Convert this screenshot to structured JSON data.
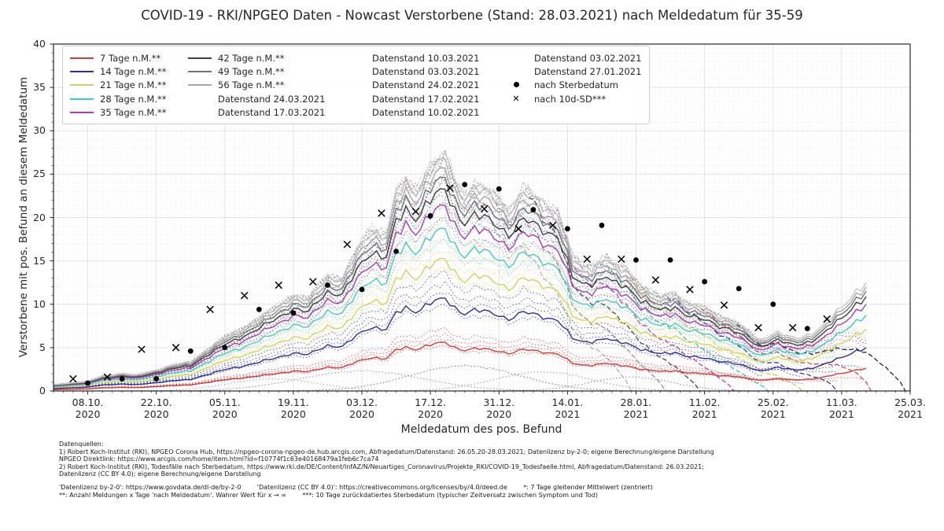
{
  "title": "COVID-19 - RKI/NPGEO Daten - Nowcast Verstorbene (Stand: 28.03.2021) nach Meldedatum für 35-59",
  "axes": {
    "x_label": "Meldedatum des pos. Befund",
    "y_label": "Verstorbene mit pos. Befund an diesem Meldedatum",
    "y_ticks": [
      0,
      5,
      10,
      15,
      20,
      25,
      30,
      35,
      40
    ],
    "x_ticks": [
      {
        "line1": "08.10.",
        "line2": "2020"
      },
      {
        "line1": "22.10.",
        "line2": "2020"
      },
      {
        "line1": "05.11.",
        "line2": "2020"
      },
      {
        "line1": "19.11.",
        "line2": "2020"
      },
      {
        "line1": "03.12.",
        "line2": "2020"
      },
      {
        "line1": "17.12.",
        "line2": "2020"
      },
      {
        "line1": "31.12.",
        "line2": "2020"
      },
      {
        "line1": "14.01.",
        "line2": "2021"
      },
      {
        "line1": "28.01.",
        "line2": "2021"
      },
      {
        "line1": "11.02.",
        "line2": "2021"
      },
      {
        "line1": "25.02.",
        "line2": "2021"
      },
      {
        "line1": "11.03.",
        "line2": "2021"
      },
      {
        "line1": "25.03.",
        "line2": "2021"
      }
    ]
  },
  "legend": {
    "items": [
      {
        "label": "7 Tage n.M.**",
        "color": "#cc3d3d",
        "type": "solid"
      },
      {
        "label": "14 Tage n.M.**",
        "color": "#2e2e96",
        "type": "solid"
      },
      {
        "label": "21 Tage n.M.**",
        "color": "#d2d25a",
        "type": "solid"
      },
      {
        "label": "28 Tage n.M.**",
        "color": "#3fc8c8",
        "type": "solid"
      },
      {
        "label": "35 Tage n.M.**",
        "color": "#b03ab0",
        "type": "solid"
      },
      {
        "label": "42 Tage n.M.**",
        "color": "#3f3f3f",
        "type": "solid"
      },
      {
        "label": "49 Tage n.M.**",
        "color": "#737373",
        "type": "solid"
      },
      {
        "label": "56 Tage n.M.**",
        "color": "#a6a6a6",
        "type": "solid"
      },
      {
        "label": "Datenstand 24.03.2021",
        "color": "#111111",
        "type": "dashed"
      },
      {
        "label": "Datenstand 17.03.2021",
        "color": "#cc3d3d",
        "type": "dashed"
      },
      {
        "label": "Datenstand 10.03.2021",
        "color": "#2e2e96",
        "type": "dashed"
      },
      {
        "label": "Datenstand 03.03.2021",
        "color": "#c8c85a",
        "type": "dashed"
      },
      {
        "label": "Datenstand 24.02.2021",
        "color": "#3fbfae",
        "type": "dashed"
      },
      {
        "label": "Datenstand 17.02.2021",
        "color": "#b832b8",
        "type": "dashed"
      },
      {
        "label": "Datenstand 10.02.2021",
        "color": "#3c3c46",
        "type": "dashed"
      },
      {
        "label": "Datenstand 03.02.2021",
        "color": "#8a8a8a",
        "type": "dashed"
      },
      {
        "label": "Datenstand 27.01.2021",
        "color": "#ababab",
        "type": "dashed"
      },
      {
        "label": "nach Sterbedatum",
        "color": "#000000",
        "type": "dot"
      },
      {
        "label": "nach 10d-SD***",
        "color": "#000000",
        "type": "x"
      }
    ]
  },
  "footer": {
    "block1": [
      "Datenquellen:",
      "1) Robert Koch-Institut (RKI), NPGEO Corona Hub, https://npgeo-corona-npgeo-de.hub.arcgis.com, Abfragedatum/Datenstand: 26.05.20-28.03.2021; Datenlizenz by-2-0; eigene Berechnung/eigene Darstellung",
      "NPGEO Direktlink: https://www.arcgis.com/home/item.html?id=f10774f1c63e40168479a1feb6c7ca74",
      "2) Robert Koch-Institut (RKI), Todesfälle nach Sterbedatum, https://www.rki.de/DE/Content/InfAZ/N/Neuartiges_Coronavirus/Projekte_RKI/COVID-19_Todesfaelle.html, Abfragedatum/Datenstand: 26.03.2021;",
      "Datenlizenz (CC BY 4.0); eigene Berechnung/eigene Darstellung"
    ],
    "block2": [
      "'Datenlizenz by-2-0': https://www.govdata.de/dl-de/by-2-0        'Datenlizenz (CC BY 4.0)': https://creativecommons.org/licenses/by/4.0/deed.de        *: 7 Tage gleitender Mittelwert (zentriert)",
      "**: Anzahl Meldungen x Tage 'nach Meldedatum'. Wahrer Wert für x → ∞        ***: 10 Tage zurückdatiertes Sterbedatum (typischer Zeitversatz zwischen Symptom und Tod)"
    ]
  },
  "chart_data": {
    "type": "line",
    "x_unit": "days since 01.10.2020",
    "x_domain": [
      0,
      175
    ],
    "ylim": [
      0,
      40
    ],
    "grid": "major+minor",
    "legend_position": "upper-left",
    "envelope_note": "total reported deaths per Meldedatum (top of bundle), sampled at day offsets",
    "envelope": [
      [
        0,
        0.7
      ],
      [
        3,
        0.9
      ],
      [
        7,
        1.1
      ],
      [
        10,
        1.7
      ],
      [
        14,
        2.0
      ],
      [
        17,
        1.8
      ],
      [
        21,
        2.4
      ],
      [
        24,
        2.9
      ],
      [
        28,
        3.3
      ],
      [
        31,
        4.6
      ],
      [
        35,
        6.1
      ],
      [
        38,
        7.0
      ],
      [
        42,
        8.3
      ],
      [
        45,
        9.3
      ],
      [
        49,
        11.0
      ],
      [
        52,
        10.4
      ],
      [
        56,
        13.2
      ],
      [
        59,
        12.8
      ],
      [
        63,
        16.9
      ],
      [
        65,
        18.5
      ],
      [
        68,
        17.8
      ],
      [
        70,
        22.3
      ],
      [
        72,
        23.8
      ],
      [
        74,
        23.0
      ],
      [
        77,
        25.5
      ],
      [
        80,
        26.4
      ],
      [
        82,
        23.9
      ],
      [
        84,
        22.5
      ],
      [
        86,
        23.3
      ],
      [
        88,
        22.8
      ],
      [
        91,
        21.9
      ],
      [
        93,
        20.8
      ],
      [
        96,
        22.6
      ],
      [
        99,
        21.8
      ],
      [
        103,
        20.5
      ],
      [
        106,
        15.1
      ],
      [
        108,
        14.2
      ],
      [
        110,
        14.4
      ],
      [
        113,
        15.1
      ],
      [
        115,
        14.0
      ],
      [
        117,
        13.9
      ],
      [
        120,
        12.1
      ],
      [
        122,
        11.2
      ],
      [
        124,
        10.6
      ],
      [
        127,
        11.2
      ],
      [
        129,
        10.2
      ],
      [
        131,
        9.7
      ],
      [
        134,
        9.2
      ],
      [
        136,
        8.6
      ],
      [
        138,
        8.3
      ],
      [
        141,
        7.2
      ],
      [
        144,
        5.9
      ],
      [
        146,
        6.3
      ],
      [
        148,
        6.8
      ],
      [
        150,
        6.2
      ],
      [
        152,
        6.1
      ],
      [
        155,
        6.7
      ],
      [
        157,
        7.4
      ],
      [
        159,
        8.5
      ],
      [
        162,
        10.3
      ],
      [
        164,
        11.6
      ],
      [
        166,
        12.3
      ]
    ],
    "solid_series": [
      {
        "name": "7 Tage n.M.**",
        "color": "#cc3d3d",
        "ratio": 0.21
      },
      {
        "name": "14 Tage n.M.**",
        "color": "#2e2e96",
        "ratio": 0.4
      },
      {
        "name": "21 Tage n.M.**",
        "color": "#d2d25a",
        "ratio": 0.57
      },
      {
        "name": "28 Tage n.M.**",
        "color": "#3fc8c8",
        "ratio": 0.7
      },
      {
        "name": "35 Tage n.M.**",
        "color": "#b03ab0",
        "ratio": 0.8
      },
      {
        "name": "42 Tage n.M.**",
        "color": "#3f3f3f",
        "ratio": 0.87
      },
      {
        "name": "49 Tage n.M.**",
        "color": "#737373",
        "ratio": 0.92
      },
      {
        "name": "56 Tage n.M.**",
        "color": "#a6a6a6",
        "ratio": 0.96
      },
      {
        "name": "Gesamt (oberste Linie)",
        "color": "#c6c6c6",
        "ratio": 1.0
      }
    ],
    "solid_end_day": 166,
    "companions": [
      {
        "mult": 1.28,
        "end": 145
      },
      {
        "mult": 1.16,
        "end": 153
      },
      {
        "mult": 1.07,
        "end": 160
      },
      {
        "mult": 0.94,
        "end": 167
      }
    ],
    "datenstand_series": [
      {
        "name": "Datenstand 27.01.2021",
        "color": "#ababab",
        "day": 118
      },
      {
        "name": "Datenstand 03.02.2021",
        "color": "#8a8a8a",
        "day": 125
      },
      {
        "name": "Datenstand 10.02.2021",
        "color": "#3c3c46",
        "day": 132
      },
      {
        "name": "Datenstand 17.02.2021",
        "color": "#b832b8",
        "day": 139
      },
      {
        "name": "Datenstand 24.02.2021",
        "color": "#3fbfae",
        "day": 146
      },
      {
        "name": "Datenstand 03.03.2021",
        "color": "#c8c85a",
        "day": 153
      },
      {
        "name": "Datenstand 10.03.2021",
        "color": "#2e2e96",
        "day": 160
      },
      {
        "name": "Datenstand 17.03.2021",
        "color": "#cc3d3d",
        "day": 167
      },
      {
        "name": "Datenstand 24.03.2021",
        "color": "#111111",
        "day": 174
      }
    ],
    "old_state_tails": [
      {
        "center": 45,
        "peak": 1.4,
        "spread": 13,
        "color": "#a8a8a8"
      },
      {
        "center": 63,
        "peak": 2.3,
        "spread": 18,
        "color": "#8f8f8f"
      },
      {
        "center": 84,
        "peak": 2.9,
        "spread": 16,
        "color": "#6f6f6f"
      },
      {
        "center": 100,
        "peak": 2.2,
        "spread": 14,
        "color": "#9a9a9a"
      },
      {
        "center": 118,
        "peak": 1.6,
        "spread": 12,
        "color": "#888888"
      }
    ],
    "markers": {
      "nach_sterbedatum": [
        [
          7,
          0.9
        ],
        [
          14,
          1.4
        ],
        [
          21,
          1.4
        ],
        [
          28,
          4.6
        ],
        [
          35,
          5.0
        ],
        [
          42,
          9.4
        ],
        [
          49,
          9.0
        ],
        [
          56,
          12.2
        ],
        [
          63,
          11.7
        ],
        [
          70,
          16.1
        ],
        [
          77,
          20.2
        ],
        [
          84,
          23.8
        ],
        [
          91,
          23.3
        ],
        [
          98,
          20.9
        ],
        [
          105,
          18.7
        ],
        [
          112,
          19.1
        ],
        [
          119,
          15.1
        ],
        [
          126,
          15.1
        ],
        [
          133,
          12.6
        ],
        [
          140,
          11.8
        ],
        [
          147,
          10.0
        ],
        [
          154,
          7.2
        ]
      ],
      "nach_10d_sd": [
        [
          4,
          1.4
        ],
        [
          11,
          1.6
        ],
        [
          18,
          4.8
        ],
        [
          25,
          5.0
        ],
        [
          32,
          9.4
        ],
        [
          39,
          11.0
        ],
        [
          46,
          12.2
        ],
        [
          53,
          12.6
        ],
        [
          60,
          16.9
        ],
        [
          67,
          20.5
        ],
        [
          74,
          20.7
        ],
        [
          81,
          23.4
        ],
        [
          88,
          21.0
        ],
        [
          95,
          18.7
        ],
        [
          102,
          19.1
        ],
        [
          109,
          15.2
        ],
        [
          116,
          15.2
        ],
        [
          123,
          12.8
        ],
        [
          130,
          11.7
        ],
        [
          137,
          9.9
        ],
        [
          144,
          7.3
        ],
        [
          151,
          7.3
        ],
        [
          158,
          8.3
        ]
      ]
    }
  }
}
